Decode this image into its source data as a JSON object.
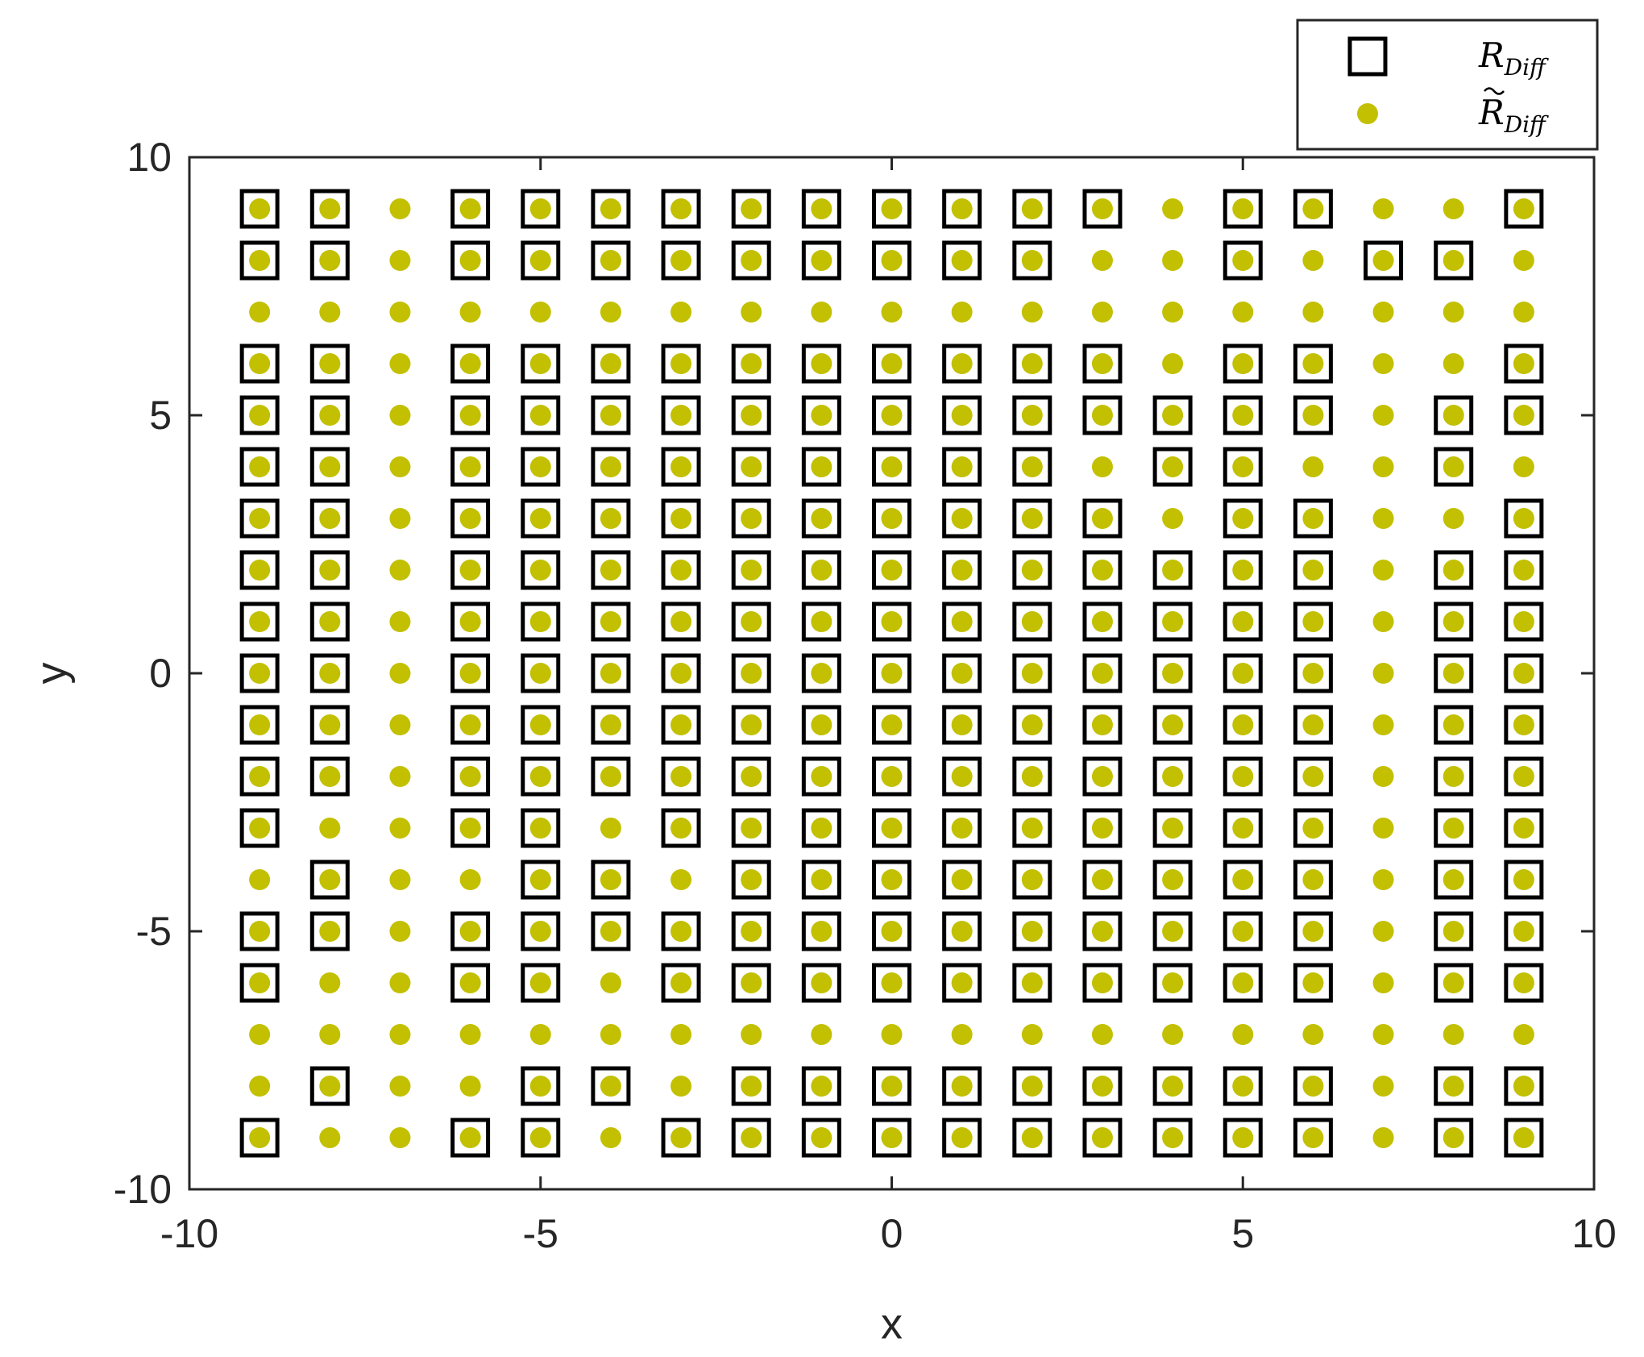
{
  "chart_data": {
    "type": "scatter",
    "title": "",
    "xlabel": "x",
    "ylabel": "y",
    "xlim": [
      -10,
      10
    ],
    "ylim": [
      -10,
      10
    ],
    "xticks": [
      -10,
      -5,
      0,
      5,
      10
    ],
    "yticks": [
      -10,
      -5,
      0,
      5,
      10
    ],
    "xtick_labels": [
      "-10",
      "-5",
      "0",
      "5",
      "10"
    ],
    "ytick_labels": [
      "-10",
      "-5",
      "0",
      "5",
      "10"
    ],
    "grid": false,
    "legend_position": "top-right, outside plot",
    "grid_x": [
      -9,
      -8,
      -7,
      -6,
      -5,
      -4,
      -3,
      -2,
      -1,
      0,
      1,
      2,
      3,
      4,
      5,
      6,
      7,
      8,
      9
    ],
    "grid_y": [
      9,
      8,
      7,
      6,
      5,
      4,
      3,
      2,
      1,
      0,
      -1,
      -2,
      -3,
      -4,
      -5,
      -6,
      -7,
      -8,
      -9
    ],
    "series": [
      {
        "name": "R_Diff",
        "legend_main": "R",
        "legend_sub": "Diff",
        "marker": "open-square",
        "color": "#000000",
        "mask_rows": [
          "1101111111111011001",
          "1101111111110010110",
          "0000000000000000000",
          "1101111111111011001",
          "1101111111111111011",
          "1101111111110110010",
          "1101111111111011001",
          "1101111111111111011",
          "1101111111111111011",
          "1101111111111111011",
          "1101111111111111011",
          "1101111111111111011",
          "1001101111111111011",
          "0100110111111111011",
          "1101111111111111011",
          "1001101111111111011",
          "0000000000000000000",
          "0100110111111111011",
          "1001101111111111011"
        ]
      },
      {
        "name": "R̃_Diff",
        "legend_main": "R",
        "legend_sub": "Diff",
        "marker": "filled-circle",
        "color": "#c2c000",
        "mask_rows": [
          "1111111111111111111",
          "1111111111111111111",
          "1111111111111111111",
          "1111111111111111111",
          "1111111111111111111",
          "1111111111111111111",
          "1111111111111111111",
          "1111111111111111111",
          "1111111111111111111",
          "1111111111111111111",
          "1111111111111111111",
          "1111111111111111111",
          "1111111111111111111",
          "1111111111111111111",
          "1111111111111111111",
          "1111111111111111111",
          "1111111111111111111",
          "1111111111111111111",
          "1111111111111111111"
        ]
      }
    ]
  }
}
